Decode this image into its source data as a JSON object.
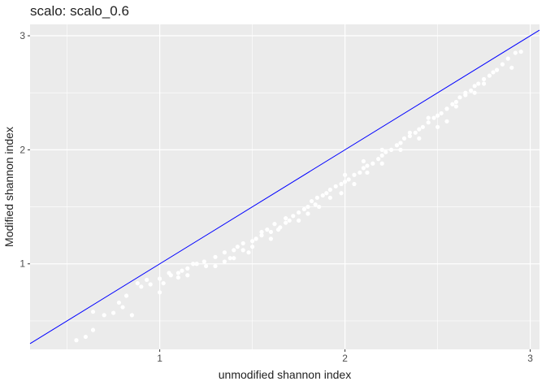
{
  "title": "scalo: scalo_0.6",
  "chart_data": {
    "type": "scatter",
    "title": "scalo: scalo_0.6",
    "xlabel": "unmodified shannon index",
    "ylabel": "Modified shannon index",
    "xlim": [
      0.3,
      3.05
    ],
    "ylim": [
      0.25,
      3.1
    ],
    "x_ticks": [
      1,
      2,
      3
    ],
    "y_ticks": [
      1,
      2,
      3
    ],
    "grid": true,
    "panel_background": "#ebebeb",
    "grid_color": "#ffffff",
    "point_color": "#ffffff",
    "reference_line": {
      "slope": 1,
      "intercept": 0,
      "color": "#0000ff",
      "label": "y = x"
    },
    "points": [
      [
        0.55,
        0.33
      ],
      [
        0.6,
        0.36
      ],
      [
        0.64,
        0.42
      ],
      [
        0.64,
        0.58
      ],
      [
        0.7,
        0.55
      ],
      [
        0.75,
        0.57
      ],
      [
        0.78,
        0.66
      ],
      [
        0.8,
        0.62
      ],
      [
        0.82,
        0.72
      ],
      [
        0.85,
        0.55
      ],
      [
        0.88,
        0.83
      ],
      [
        0.9,
        0.8
      ],
      [
        0.93,
        0.86
      ],
      [
        0.95,
        0.82
      ],
      [
        1.0,
        0.87
      ],
      [
        1.0,
        0.75
      ],
      [
        1.02,
        0.83
      ],
      [
        1.05,
        0.92
      ],
      [
        1.06,
        0.9
      ],
      [
        1.1,
        0.92
      ],
      [
        1.12,
        0.94
      ],
      [
        1.15,
        0.96
      ],
      [
        1.18,
        1.0
      ],
      [
        1.2,
        1.0
      ],
      [
        1.24,
        1.02
      ],
      [
        1.3,
        0.98
      ],
      [
        1.3,
        1.06
      ],
      [
        1.35,
        1.1
      ],
      [
        1.38,
        1.05
      ],
      [
        1.4,
        1.12
      ],
      [
        1.42,
        1.15
      ],
      [
        1.45,
        1.18
      ],
      [
        1.48,
        1.1
      ],
      [
        1.5,
        1.2
      ],
      [
        1.52,
        1.22
      ],
      [
        1.55,
        1.25
      ],
      [
        1.58,
        1.3
      ],
      [
        1.6,
        1.28
      ],
      [
        1.62,
        1.35
      ],
      [
        1.64,
        1.3
      ],
      [
        1.65,
        1.32
      ],
      [
        1.68,
        1.4
      ],
      [
        1.7,
        1.38
      ],
      [
        1.72,
        1.42
      ],
      [
        1.75,
        1.45
      ],
      [
        1.78,
        1.48
      ],
      [
        1.8,
        1.5
      ],
      [
        1.82,
        1.55
      ],
      [
        1.84,
        1.52
      ],
      [
        1.85,
        1.58
      ],
      [
        1.88,
        1.6
      ],
      [
        1.9,
        1.62
      ],
      [
        1.92,
        1.65
      ],
      [
        1.95,
        1.68
      ],
      [
        1.98,
        1.7
      ],
      [
        2.0,
        1.72
      ],
      [
        2.02,
        1.74
      ],
      [
        2.05,
        1.78
      ],
      [
        2.08,
        1.8
      ],
      [
        2.1,
        1.84
      ],
      [
        2.12,
        1.86
      ],
      [
        2.15,
        1.88
      ],
      [
        2.18,
        1.92
      ],
      [
        2.2,
        1.95
      ],
      [
        2.22,
        1.98
      ],
      [
        2.25,
        2.0
      ],
      [
        2.28,
        2.04
      ],
      [
        2.3,
        2.06
      ],
      [
        2.32,
        2.1
      ],
      [
        2.35,
        2.12
      ],
      [
        2.38,
        2.15
      ],
      [
        2.4,
        2.18
      ],
      [
        2.42,
        2.2
      ],
      [
        2.45,
        2.24
      ],
      [
        2.48,
        2.28
      ],
      [
        2.5,
        2.3
      ],
      [
        2.52,
        2.32
      ],
      [
        2.55,
        2.36
      ],
      [
        2.58,
        2.4
      ],
      [
        2.6,
        2.42
      ],
      [
        2.62,
        2.46
      ],
      [
        2.65,
        2.5
      ],
      [
        2.68,
        2.52
      ],
      [
        2.7,
        2.56
      ],
      [
        2.72,
        2.58
      ],
      [
        2.75,
        2.62
      ],
      [
        2.78,
        2.65
      ],
      [
        2.8,
        2.68
      ],
      [
        2.82,
        2.7
      ],
      [
        2.85,
        2.75
      ],
      [
        2.88,
        2.8
      ],
      [
        2.9,
        2.72
      ],
      [
        2.92,
        2.85
      ],
      [
        2.95,
        2.86
      ],
      [
        1.55,
        1.28
      ],
      [
        1.6,
        1.22
      ],
      [
        1.68,
        1.36
      ],
      [
        1.75,
        1.38
      ],
      [
        1.8,
        1.44
      ],
      [
        1.86,
        1.5
      ],
      [
        1.92,
        1.58
      ],
      [
        1.98,
        1.62
      ],
      [
        2.05,
        1.7
      ],
      [
        2.12,
        1.8
      ],
      [
        2.2,
        1.88
      ],
      [
        2.3,
        2.0
      ],
      [
        2.4,
        2.1
      ],
      [
        2.5,
        2.2
      ],
      [
        2.55,
        2.25
      ],
      [
        2.6,
        2.38
      ],
      [
        1.4,
        1.05
      ],
      [
        1.35,
        1.02
      ],
      [
        1.45,
        1.12
      ],
      [
        1.5,
        1.15
      ],
      [
        1.25,
        0.98
      ],
      [
        1.15,
        0.9
      ],
      [
        1.1,
        0.88
      ],
      [
        2.0,
        1.78
      ],
      [
        2.1,
        1.9
      ],
      [
        2.2,
        2.0
      ],
      [
        2.35,
        2.15
      ],
      [
        2.45,
        2.28
      ],
      [
        2.65,
        2.48
      ],
      [
        2.7,
        2.5
      ],
      [
        2.75,
        2.58
      ]
    ]
  }
}
